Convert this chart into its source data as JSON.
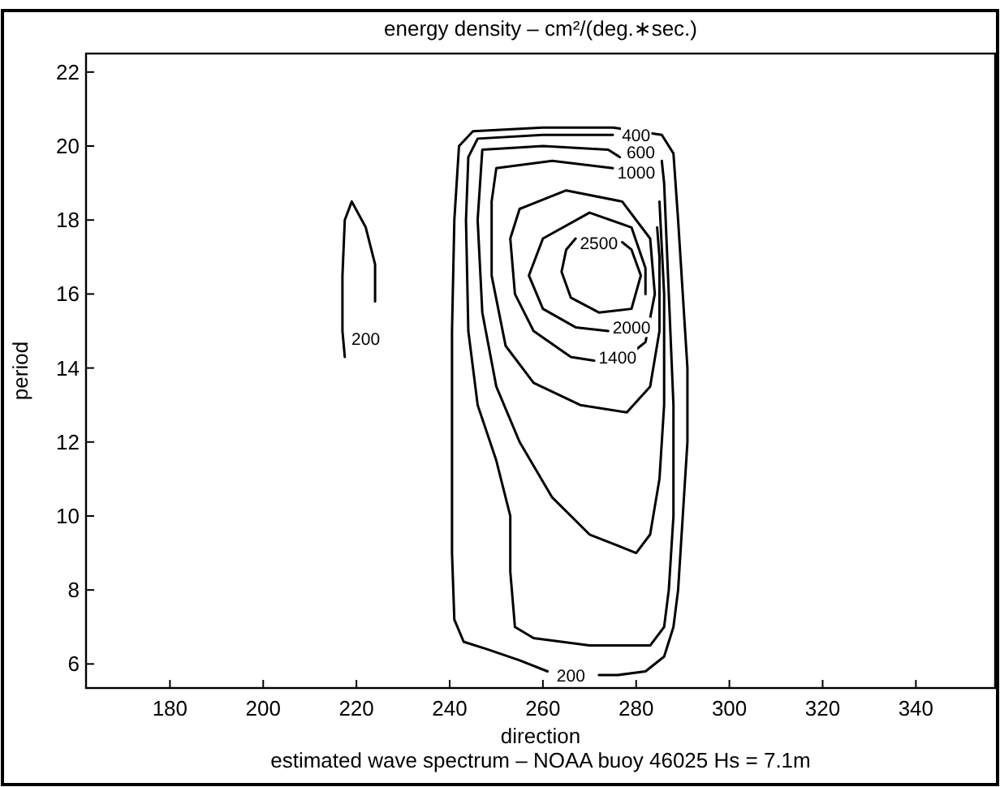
{
  "chart_data": {
    "type": "line",
    "title": "energy density – cm²/(deg.∗sec.)",
    "xlabel": "direction",
    "ylabel": "period",
    "xlim": [
      162,
      357
    ],
    "xticks": [
      180,
      200,
      220,
      240,
      260,
      280,
      300,
      320,
      340
    ],
    "ylim": [
      5.35,
      22.5
    ],
    "yticks": [
      6,
      8,
      10,
      12,
      14,
      16,
      18,
      20,
      22
    ],
    "grid": false,
    "marker": "none",
    "line_style": "solid",
    "series": [
      {
        "color": "#000000",
        "x": [
          272,
          276,
          282,
          286,
          288,
          289,
          290,
          291,
          291,
          290,
          289,
          288,
          285.5,
          275,
          260,
          245,
          242,
          241,
          240.5,
          240.5,
          240.5,
          241,
          243,
          248,
          255,
          261
        ],
        "values": [
          5.7,
          5.7,
          5.8,
          6.2,
          7,
          8,
          10,
          12,
          14,
          16,
          18,
          19.8,
          20.3,
          20.5,
          20.5,
          20.4,
          20,
          18,
          15,
          12,
          9,
          7.2,
          6.6,
          6.4,
          6.1,
          5.8
        ]
      },
      {
        "color": "#000000",
        "x": [
          285.5,
          286,
          287,
          288,
          288,
          287,
          286,
          283,
          270,
          258,
          254,
          253,
          253,
          250,
          246,
          244,
          243.5,
          244,
          246,
          260,
          275
        ],
        "values": [
          19.6,
          19,
          16,
          13,
          10,
          8,
          7,
          6.5,
          6.5,
          6.7,
          7,
          8.5,
          10,
          11.5,
          13,
          15,
          18,
          19.7,
          20.2,
          20.3,
          20.3
        ]
      },
      {
        "color": "#000000",
        "x": [
          285,
          286,
          286,
          285,
          283,
          280,
          270,
          262,
          255,
          250,
          247,
          246,
          247,
          260,
          274,
          276.5
        ],
        "values": [
          18.5,
          16,
          13,
          11,
          9.5,
          9,
          9.5,
          10.5,
          12,
          13.5,
          15.5,
          18,
          19.9,
          20,
          19.9,
          19.7
        ]
      },
      {
        "color": "#000000",
        "x": [
          284.5,
          285,
          285,
          283,
          278,
          268,
          258,
          252,
          249,
          249,
          250,
          262,
          275
        ],
        "values": [
          17.8,
          17,
          15,
          13.5,
          12.8,
          13,
          13.6,
          14.6,
          16.5,
          18.5,
          19.4,
          19.6,
          19.4
        ]
      },
      {
        "color": "#000000",
        "x": [
          280,
          282,
          284,
          283,
          277,
          265,
          255,
          253,
          254,
          258,
          266,
          271
        ],
        "values": [
          14.5,
          14.7,
          16,
          17.5,
          18.5,
          18.8,
          18.3,
          17.5,
          16,
          15,
          14.3,
          14.2
        ]
      },
      {
        "color": "#000000",
        "x": [
          282,
          282,
          279,
          270,
          260,
          257,
          260,
          267,
          274
        ],
        "values": [
          16,
          16.7,
          17.8,
          18.2,
          17.5,
          16.5,
          15.6,
          15.1,
          15
        ]
      },
      {
        "color": "#000000",
        "x": [
          277,
          279,
          281,
          279,
          272,
          266,
          264,
          265,
          267
        ],
        "values": [
          17.4,
          17.2,
          16.5,
          15.6,
          15.5,
          15.9,
          16.6,
          17.2,
          17.5
        ]
      },
      {
        "color": "#000000",
        "x": [
          224,
          224,
          222,
          219,
          217.5,
          217,
          217,
          217.5
        ],
        "values": [
          15.8,
          16.8,
          17.8,
          18.5,
          18,
          16.5,
          15,
          14.3
        ]
      }
    ],
    "annotations": [
      {
        "text": "400",
        "x": 280,
        "y": 20.3
      },
      {
        "text": "600",
        "x": 281,
        "y": 19.85
      },
      {
        "text": "1000",
        "x": 280,
        "y": 19.3
      },
      {
        "text": "2500",
        "x": 272,
        "y": 17.4
      },
      {
        "text": "2000",
        "x": 279,
        "y": 15.1
      },
      {
        "text": "1400",
        "x": 276,
        "y": 14.3
      },
      {
        "text": "200",
        "x": 266,
        "y": 5.7
      },
      {
        "text": "200",
        "x": 222,
        "y": 14.8
      },
      "estimated wave spectrum – NOAA buoy 46025    Hs = 7.1m"
    ]
  }
}
